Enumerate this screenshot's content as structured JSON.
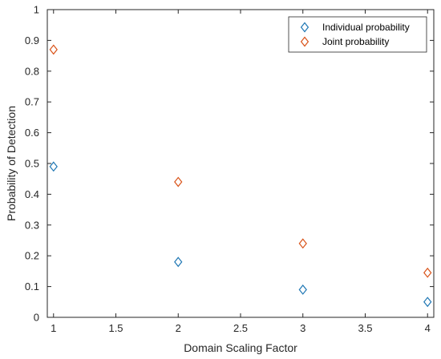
{
  "chart_data": {
    "type": "scatter",
    "title": "",
    "xlabel": "Domain Scaling Factor",
    "ylabel": "Probability of Detection",
    "xlim": [
      0.95,
      4.05
    ],
    "ylim": [
      0,
      1
    ],
    "xticks": [
      1,
      1.5,
      2,
      2.5,
      3,
      3.5,
      4
    ],
    "xtick_labels": [
      "1",
      "1.5",
      "2",
      "2.5",
      "3",
      "3.5",
      "4"
    ],
    "yticks": [
      0,
      0.1,
      0.2,
      0.3,
      0.4,
      0.5,
      0.6,
      0.7,
      0.8,
      0.9,
      1
    ],
    "ytick_labels": [
      "0",
      "0.1",
      "0.2",
      "0.3",
      "0.4",
      "0.5",
      "0.6",
      "0.7",
      "0.8",
      "0.9",
      "1"
    ],
    "grid": false,
    "legend_position": "top-right",
    "marker": "diamond",
    "series": [
      {
        "name": "Individual probability",
        "color": "#1f77b4",
        "x": [
          1,
          2,
          3,
          4
        ],
        "y": [
          0.49,
          0.18,
          0.09,
          0.05
        ]
      },
      {
        "name": "Joint probability",
        "color": "#d95319",
        "x": [
          1,
          2,
          3,
          4
        ],
        "y": [
          0.87,
          0.44,
          0.24,
          0.145
        ]
      }
    ]
  }
}
